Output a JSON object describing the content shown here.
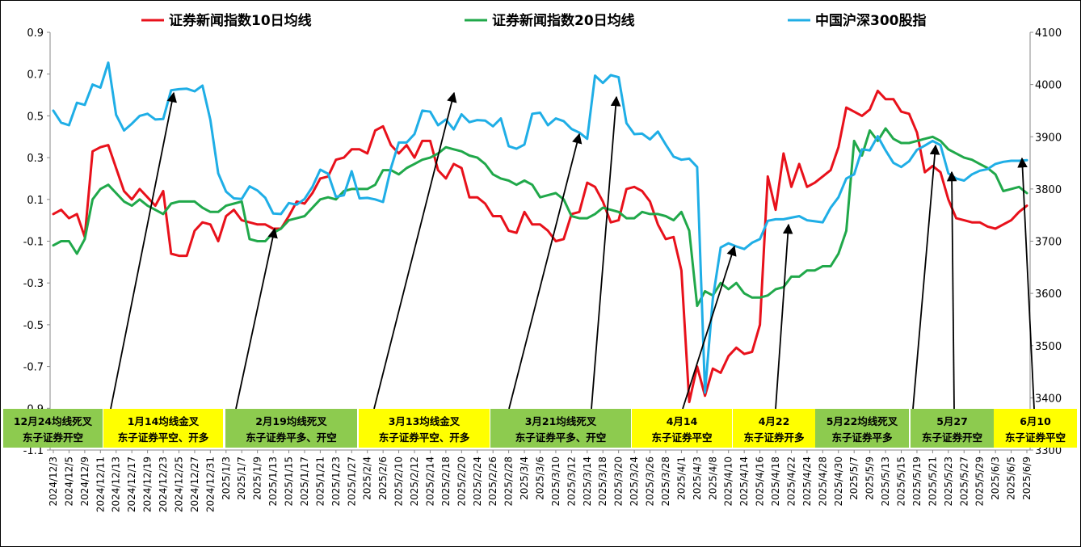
{
  "colors": {
    "series_10d": "#E8111B",
    "series_20d": "#20A84A",
    "series_csi": "#1FAEE6",
    "box_green": "#8DCB4F",
    "box_yellow": "#FFFF00",
    "arrow": "#000000"
  },
  "chart_data": {
    "type": "line",
    "title": "",
    "xlabel": "",
    "ylabel_left": "",
    "ylabel_right": "",
    "ylim_left": [
      -1.1,
      0.9
    ],
    "yticks_left": [
      "0.9",
      "0.7",
      "0.5",
      "0.3",
      "0.1",
      "-0.1",
      "-0.3",
      "-0.5",
      "-0.7",
      "-0.9",
      "-1.1"
    ],
    "ylim_right": [
      3300,
      4100
    ],
    "yticks_right": [
      "4100",
      "4000",
      "3900",
      "3800",
      "3700",
      "3600",
      "3500",
      "3400",
      "3300"
    ],
    "x_tick_labels": [
      "2024/12/3",
      "2024/12/5",
      "2024/12/9",
      "2024/12/11",
      "2024/12/13",
      "2024/12/17",
      "2024/12/19",
      "2024/12/23",
      "2024/12/25",
      "2024/12/27",
      "2024/12/31",
      "2025/1/3",
      "2025/1/7",
      "2025/1/9",
      "2025/1/13",
      "2025/1/15",
      "2025/1/17",
      "2025/1/21",
      "2025/1/23",
      "2025/1/27",
      "2025/2/4",
      "2025/2/6",
      "2025/2/10",
      "2025/2/12",
      "2025/2/14",
      "2025/2/18",
      "2025/2/20",
      "2025/2/24",
      "2025/2/26",
      "2025/2/28",
      "2025/3/4",
      "2025/3/6",
      "2025/3/10",
      "2025/3/12",
      "2025/3/14",
      "2025/3/18",
      "2025/3/20",
      "2025/3/24",
      "2025/3/26",
      "2025/3/28",
      "2025/4/1",
      "2025/4/3",
      "2025/4/8",
      "2025/4/10",
      "2025/4/14",
      "2025/4/16",
      "2025/4/18",
      "2025/4/22",
      "2025/4/24",
      "2025/4/28",
      "2025/4/30",
      "2025/5/7",
      "2025/5/9",
      "2025/5/13",
      "2025/5/15",
      "2025/5/19",
      "2025/5/21",
      "2025/5/23",
      "2025/5/27",
      "2025/5/29",
      "2025/6/3",
      "2025/6/5",
      "2025/6/9"
    ],
    "legend_position": "top",
    "grid": false,
    "series": [
      {
        "name": "证券新闻指数10日均线",
        "axis": "left",
        "values": [
          0.03,
          0.05,
          0.01,
          0.03,
          -0.08,
          0.33,
          0.35,
          0.36,
          0.25,
          0.14,
          0.1,
          0.15,
          0.11,
          0.07,
          0.14,
          -0.16,
          -0.17,
          -0.17,
          -0.05,
          -0.01,
          -0.02,
          -0.1,
          0.02,
          0.05,
          0.0,
          -0.01,
          -0.02,
          -0.02,
          -0.04,
          -0.04,
          0.02,
          0.09,
          0.08,
          0.13,
          0.2,
          0.21,
          0.29,
          0.3,
          0.34,
          0.34,
          0.32,
          0.43,
          0.45,
          0.36,
          0.32,
          0.36,
          0.3,
          0.38,
          0.38,
          0.24,
          0.2,
          0.27,
          0.25,
          0.11,
          0.11,
          0.08,
          0.02,
          0.02,
          -0.05,
          -0.06,
          0.04,
          -0.02,
          -0.02,
          -0.05,
          -0.1,
          -0.09,
          0.03,
          0.04,
          0.18,
          0.16,
          0.09,
          -0.01,
          0.0,
          0.15,
          0.16,
          0.14,
          0.09,
          -0.02,
          -0.09,
          -0.08,
          -0.24,
          -0.87,
          -0.7,
          -0.84,
          -0.71,
          -0.73,
          -0.65,
          -0.61,
          -0.64,
          -0.63,
          -0.5,
          0.21,
          0.05,
          0.32,
          0.16,
          0.27,
          0.16,
          0.18,
          0.21,
          0.24,
          0.35,
          0.54,
          0.52,
          0.5,
          0.53,
          0.62,
          0.58,
          0.58,
          0.52,
          0.51,
          0.42,
          0.23,
          0.26,
          0.23,
          0.1,
          0.01,
          0.0,
          -0.01,
          -0.01,
          -0.03,
          -0.04,
          -0.02,
          0.0,
          0.04,
          0.07
        ]
      },
      {
        "name": "证券新闻指数20日均线",
        "axis": "left",
        "values": [
          -0.12,
          -0.1,
          -0.1,
          -0.16,
          -0.09,
          0.1,
          0.15,
          0.17,
          0.13,
          0.09,
          0.07,
          0.1,
          0.07,
          0.05,
          0.03,
          0.08,
          0.09,
          0.09,
          0.09,
          0.06,
          0.04,
          0.04,
          0.07,
          0.08,
          0.09,
          -0.09,
          -0.1,
          -0.1,
          -0.06,
          -0.04,
          0.0,
          0.01,
          0.02,
          0.06,
          0.1,
          0.11,
          0.1,
          0.14,
          0.15,
          0.15,
          0.15,
          0.17,
          0.24,
          0.24,
          0.22,
          0.25,
          0.27,
          0.29,
          0.3,
          0.32,
          0.35,
          0.34,
          0.33,
          0.31,
          0.3,
          0.27,
          0.22,
          0.2,
          0.19,
          0.17,
          0.19,
          0.17,
          0.11,
          0.12,
          0.13,
          0.1,
          0.02,
          0.01,
          0.01,
          0.03,
          0.06,
          0.05,
          0.04,
          0.01,
          0.01,
          0.04,
          0.03,
          0.03,
          0.02,
          0.0,
          0.04,
          -0.05,
          -0.41,
          -0.34,
          -0.36,
          -0.3,
          -0.33,
          -0.3,
          -0.35,
          -0.37,
          -0.37,
          -0.36,
          -0.33,
          -0.32,
          -0.27,
          -0.27,
          -0.24,
          -0.24,
          -0.22,
          -0.22,
          -0.16,
          -0.05,
          0.38,
          0.31,
          0.43,
          0.38,
          0.44,
          0.39,
          0.37,
          0.37,
          0.38,
          0.39,
          0.4,
          0.38,
          0.34,
          0.32,
          0.3,
          0.29,
          0.27,
          0.25,
          0.22,
          0.14,
          0.15,
          0.16,
          0.13
        ]
      },
      {
        "name": "中国沪深300股指",
        "axis": "right",
        "values": [
          3950,
          3927,
          3922,
          3965,
          3961,
          4000,
          3994,
          4042,
          3942,
          3912,
          3925,
          3940,
          3944,
          3933,
          3934,
          3989,
          3991,
          3992,
          3987,
          3998,
          3932,
          3830,
          3795,
          3782,
          3781,
          3805,
          3797,
          3783,
          3753,
          3752,
          3773,
          3770,
          3781,
          3804,
          3837,
          3829,
          3785,
          3788,
          3834,
          3782,
          3783,
          3780,
          3775,
          3840,
          3889,
          3889,
          3905,
          3950,
          3948,
          3922,
          3933,
          3914,
          3943,
          3928,
          3932,
          3931,
          3920,
          3935,
          3882,
          3877,
          3885,
          3944,
          3946,
          3922,
          3935,
          3930,
          3915,
          3908,
          3896,
          4017,
          4003,
          4018,
          4014,
          3926,
          3905,
          3906,
          3895,
          3910,
          3885,
          3862,
          3856,
          3858,
          3842,
          3410,
          3590,
          3688,
          3696,
          3690,
          3685,
          3697,
          3704,
          3739,
          3742,
          3742,
          3745,
          3748,
          3740,
          3738,
          3736,
          3764,
          3784,
          3820,
          3828,
          3876,
          3874,
          3901,
          3874,
          3850,
          3842,
          3853,
          3875,
          3883,
          3892,
          3884,
          3830,
          3820,
          3816,
          3828,
          3835,
          3838,
          3848,
          3852,
          3854,
          3854,
          3855
        ]
      }
    ],
    "annotations": [
      {
        "date": "12月24均线死叉",
        "action": "东子证券开空",
        "color": "green"
      },
      {
        "date": "1月14均线金叉",
        "action": "东子证券平空、开多",
        "color": "yellow"
      },
      {
        "date": "2月19均线死叉",
        "action": "东子证券平多、开空",
        "color": "green"
      },
      {
        "date": "3月13均线金叉",
        "action": "东子证券平空、开多",
        "color": "yellow"
      },
      {
        "date": "3月21均线死叉",
        "action": "东子证券平多、开空",
        "color": "green"
      },
      {
        "date": "4月14",
        "action": "东子证券平空",
        "color": "yellow"
      },
      {
        "date": "4月22",
        "action": "东子证券开多",
        "color": "yellow"
      },
      {
        "date": "5月22均线死叉",
        "action": "东子证券平多",
        "color": "green"
      },
      {
        "date": "5月27",
        "action": "东子证券开空",
        "color": "green"
      },
      {
        "date": "6月10",
        "action": "东子证券平空",
        "color": "yellow"
      }
    ]
  }
}
